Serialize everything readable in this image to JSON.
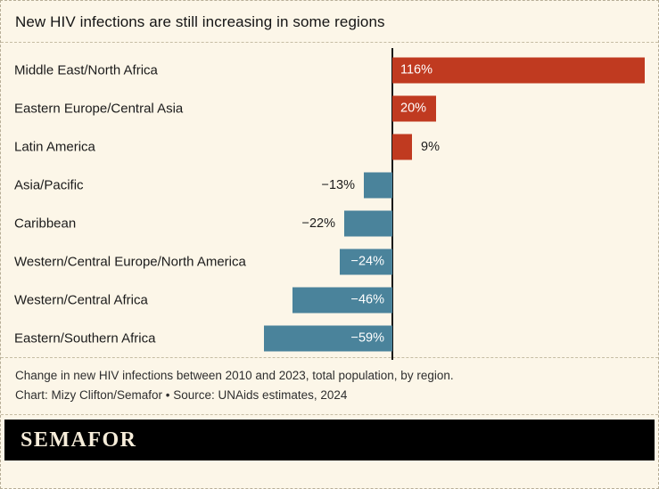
{
  "title": "New HIV infections are still increasing in some regions",
  "chart_data": {
    "type": "bar",
    "orientation": "horizontal",
    "unit": "%",
    "categories": [
      "Middle East/North Africa",
      "Eastern Europe/Central Asia",
      "Latin America",
      "Asia/Pacific",
      "Caribbean",
      "Western/Central Europe/North America",
      "Western/Central Africa",
      "Eastern/Southern Africa"
    ],
    "values": [
      116,
      20,
      9,
      -13,
      -22,
      -24,
      -46,
      -59
    ],
    "value_labels": [
      "116%",
      "20%",
      "9%",
      "−13%",
      "−22%",
      "−24%",
      "−46%",
      "−59%"
    ],
    "label_inside": [
      true,
      true,
      false,
      false,
      false,
      true,
      true,
      true
    ],
    "positive_color": "#c03a20",
    "negative_color": "#4a839b",
    "xlim": [
      -59,
      116
    ],
    "zero_axis": true,
    "grid": false,
    "legend": false,
    "title": "New HIV infections are still increasing in some regions",
    "xlabel": "",
    "ylabel": ""
  },
  "caption": "Change in new HIV infections between 2010 and 2023, total population, by region.",
  "credit": "Chart: Mizy Clifton/Semafor • Source: UNAids estimates, 2024",
  "footer": {
    "brand": "SEMAFOR"
  },
  "colors": {
    "background": "#fcf6e8",
    "border": "#b6ad96",
    "footer_bg": "#000000",
    "footer_text": "#f6edda"
  }
}
